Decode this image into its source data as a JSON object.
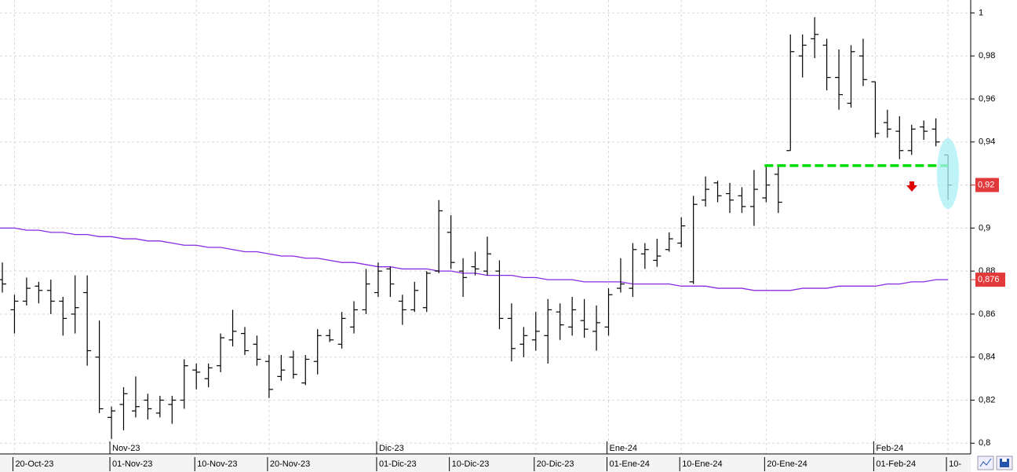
{
  "chart_data": {
    "type": "ohlc",
    "color": "#000000",
    "categories": [
      null,
      "20-Oct-23",
      null,
      null,
      null,
      null,
      null,
      null,
      null,
      "01-Nov-23",
      null,
      null,
      null,
      null,
      null,
      null,
      "10-Nov-23",
      null,
      null,
      null,
      null,
      null,
      "20-Nov-23",
      null,
      null,
      null,
      null,
      null,
      null,
      null,
      null,
      "01-Dic-23",
      null,
      null,
      null,
      null,
      null,
      "10-Dic-23",
      null,
      null,
      null,
      null,
      null,
      null,
      "20-Dic-23",
      null,
      null,
      null,
      null,
      null,
      "01-Ene-24",
      null,
      null,
      null,
      null,
      null,
      "10-Ene-24",
      null,
      null,
      null,
      null,
      null,
      null,
      "20-Ene-24",
      null,
      null,
      null,
      null,
      null,
      null,
      null,
      null,
      "01-Feb-24",
      null,
      null,
      null,
      null,
      null,
      "10-"
    ],
    "month_labels": [
      null,
      null,
      null,
      null,
      null,
      null,
      null,
      null,
      null,
      "Nov-23",
      null,
      null,
      null,
      null,
      null,
      null,
      null,
      null,
      null,
      null,
      null,
      null,
      null,
      null,
      null,
      null,
      null,
      null,
      null,
      null,
      null,
      "Dic-23",
      null,
      null,
      null,
      null,
      null,
      null,
      null,
      null,
      null,
      null,
      null,
      null,
      null,
      null,
      null,
      null,
      null,
      null,
      "Ene-24",
      null,
      null,
      null,
      null,
      null,
      null,
      null,
      null,
      null,
      null,
      null,
      null,
      null,
      null,
      null,
      null,
      null,
      null,
      null,
      null,
      null,
      "Feb-24",
      null,
      null,
      null,
      null,
      null,
      null
    ],
    "open": [
      0.876,
      0.862,
      0.866,
      0.873,
      0.871,
      0.866,
      0.86,
      0.87,
      0.84,
      0.812,
      0.818,
      0.815,
      0.82,
      0.814,
      0.818,
      0.82,
      0.834,
      0.83,
      0.836,
      0.848,
      0.851,
      0.846,
      0.838,
      0.831,
      0.84,
      0.828,
      0.838,
      0.85,
      0.846,
      0.854,
      0.862,
      0.87,
      0.881,
      0.866,
      0.862,
      0.863,
      0.88,
      0.898,
      0.88,
      0.882,
      0.88,
      0.88,
      0.858,
      0.846,
      0.848,
      0.85,
      0.861,
      0.854,
      0.857,
      0.852,
      0.854,
      0.872,
      0.872,
      0.888,
      0.885,
      0.89,
      0.893,
      0.875,
      0.913,
      0.921,
      0.916,
      0.915,
      0.91,
      0.914,
      0.925,
      0.936,
      0.98,
      0.988,
      0.985,
      0.97,
      0.958,
      0.98,
      0.968,
      0.949,
      0.945,
      0.936,
      0.947,
      0.946,
      0.934
    ],
    "high": [
      0.884,
      0.869,
      0.877,
      0.875,
      0.876,
      0.868,
      0.878,
      0.878,
      0.857,
      0.817,
      0.826,
      0.831,
      0.823,
      0.822,
      0.822,
      0.839,
      0.837,
      0.837,
      0.851,
      0.862,
      0.854,
      0.85,
      0.841,
      0.841,
      0.843,
      0.841,
      0.853,
      0.853,
      0.861,
      0.866,
      0.881,
      0.884,
      0.882,
      0.869,
      0.875,
      0.88,
      0.913,
      0.906,
      0.886,
      0.889,
      0.896,
      0.885,
      0.865,
      0.854,
      0.861,
      0.867,
      0.865,
      0.868,
      0.867,
      0.864,
      0.872,
      0.886,
      0.893,
      0.893,
      0.895,
      0.898,
      0.905,
      0.915,
      0.924,
      0.922,
      0.921,
      0.919,
      0.927,
      0.929,
      0.929,
      0.99,
      0.99,
      0.998,
      0.988,
      0.983,
      0.985,
      0.988,
      0.968,
      0.955,
      0.952,
      0.948,
      0.95,
      0.951,
      0.934
    ],
    "low": [
      0.87,
      0.851,
      0.864,
      0.865,
      0.86,
      0.85,
      0.851,
      0.836,
      0.814,
      0.802,
      0.806,
      0.812,
      0.811,
      0.812,
      0.809,
      0.816,
      0.825,
      0.826,
      0.833,
      0.845,
      0.841,
      0.836,
      0.821,
      0.829,
      0.83,
      0.827,
      0.832,
      0.847,
      0.844,
      0.851,
      0.86,
      0.868,
      0.868,
      0.855,
      0.861,
      0.861,
      0.879,
      0.881,
      0.868,
      0.878,
      0.878,
      0.853,
      0.838,
      0.84,
      0.843,
      0.837,
      0.848,
      0.85,
      0.849,
      0.843,
      0.85,
      0.87,
      0.868,
      0.881,
      0.882,
      0.889,
      0.891,
      0.874,
      0.91,
      0.912,
      0.907,
      0.907,
      0.901,
      0.912,
      0.907,
      0.936,
      0.97,
      0.979,
      0.964,
      0.955,
      0.956,
      0.966,
      0.942,
      0.942,
      0.932,
      0.934,
      0.941,
      0.938,
      0.913
    ],
    "close": [
      0.874,
      0.866,
      0.872,
      0.871,
      0.866,
      0.858,
      0.863,
      0.843,
      0.816,
      0.815,
      0.823,
      0.817,
      0.816,
      0.82,
      0.82,
      0.836,
      0.833,
      0.835,
      0.849,
      0.852,
      0.843,
      0.839,
      0.825,
      0.834,
      0.832,
      0.839,
      0.85,
      0.848,
      0.858,
      0.862,
      0.874,
      0.88,
      0.874,
      0.862,
      0.871,
      0.879,
      0.908,
      0.884,
      0.877,
      0.881,
      0.888,
      0.858,
      0.844,
      0.85,
      0.852,
      0.862,
      0.855,
      0.862,
      0.853,
      0.856,
      0.869,
      0.874,
      0.89,
      0.89,
      0.887,
      0.895,
      0.901,
      0.911,
      0.918,
      0.915,
      0.913,
      0.91,
      0.918,
      0.92,
      0.912,
      0.982,
      0.985,
      0.99,
      0.97,
      0.962,
      0.982,
      0.969,
      0.944,
      0.946,
      0.936,
      0.946,
      0.945,
      0.94,
      0.92
    ],
    "close_label": "0,92",
    "ma": {
      "color": "#8a2be2",
      "last_label": "0,876",
      "values": [
        0.9,
        0.9,
        0.899,
        0.899,
        0.898,
        0.898,
        0.897,
        0.897,
        0.896,
        0.896,
        0.895,
        0.895,
        0.894,
        0.894,
        0.893,
        0.892,
        0.892,
        0.891,
        0.891,
        0.89,
        0.889,
        0.889,
        0.888,
        0.887,
        0.887,
        0.886,
        0.886,
        0.885,
        0.884,
        0.884,
        0.883,
        0.882,
        0.882,
        0.881,
        0.881,
        0.881,
        0.88,
        0.88,
        0.879,
        0.879,
        0.878,
        0.878,
        0.878,
        0.877,
        0.877,
        0.876,
        0.876,
        0.876,
        0.875,
        0.875,
        0.875,
        0.875,
        0.874,
        0.874,
        0.874,
        0.874,
        0.873,
        0.873,
        0.873,
        0.872,
        0.872,
        0.872,
        0.871,
        0.871,
        0.871,
        0.871,
        0.872,
        0.872,
        0.872,
        0.873,
        0.873,
        0.873,
        0.873,
        0.874,
        0.874,
        0.875,
        0.875,
        0.876,
        0.876
      ]
    },
    "support": {
      "value": 0.929,
      "color": "#00dd00"
    },
    "ylim": [
      0.795,
      1.006
    ],
    "yticks": [
      {
        "value": 0.8,
        "label": "0,8"
      },
      {
        "value": 0.82,
        "label": "0,82"
      },
      {
        "value": 0.84,
        "label": "0,84"
      },
      {
        "value": 0.86,
        "label": "0,86"
      },
      {
        "value": 0.88,
        "label": "0,88"
      },
      {
        "value": 0.9,
        "label": "0,9"
      },
      {
        "value": 0.92,
        "label": "0,92"
      },
      {
        "value": 0.94,
        "label": "0,94"
      },
      {
        "value": 0.96,
        "label": "0,96"
      },
      {
        "value": 0.98,
        "label": "0,98"
      },
      1
    ],
    "grid": true
  }
}
